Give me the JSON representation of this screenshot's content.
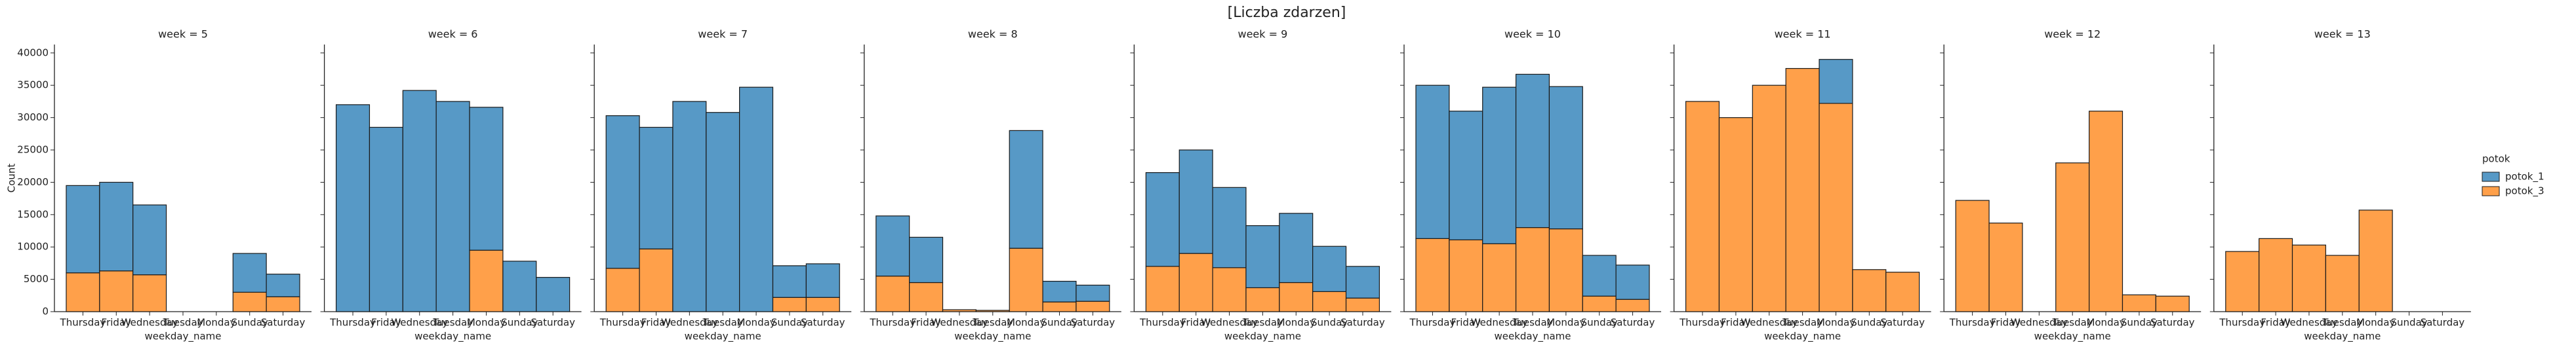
{
  "chart_data": {
    "type": "bar",
    "stacked": true,
    "title": "[Liczba zdarzen]",
    "ylabel": "Count",
    "ylim": [
      0,
      41300
    ],
    "yticks": [
      0,
      5000,
      10000,
      15000,
      20000,
      25000,
      30000,
      35000,
      40000
    ],
    "legend_title": "potok",
    "panels": [
      {
        "title": "week = 5",
        "xlabel": "weekday_name",
        "categories": [
          "Thursday",
          "Friday",
          "Wednesday",
          "Tuesday",
          "Monday",
          "Sunday",
          "Saturday"
        ],
        "series": [
          {
            "name": "potok_1",
            "color": "#5799c6",
            "values": [
              13500,
              13700,
              10800,
              0,
              0,
              6000,
              3500
            ]
          },
          {
            "name": "potok_3",
            "color": "#ffa04a",
            "values": [
              6000,
              6300,
              5700,
              0,
              0,
              3000,
              2300
            ]
          }
        ]
      },
      {
        "title": "week = 6",
        "xlabel": "weekday_name",
        "categories": [
          "Thursday",
          "Friday",
          "Wednesday",
          "Tuesday",
          "Monday",
          "Sunday",
          "Saturday"
        ],
        "series": [
          {
            "name": "potok_1",
            "color": "#5799c6",
            "values": [
              32000,
              28500,
              34200,
              32500,
              22100,
              7800,
              5300
            ]
          },
          {
            "name": "potok_3",
            "color": "#ffa04a",
            "values": [
              0,
              0,
              0,
              0,
              9500,
              0,
              0
            ]
          }
        ]
      },
      {
        "title": "week = 7",
        "xlabel": "weekday_name",
        "categories": [
          "Thursday",
          "Friday",
          "Wednesday",
          "Tuesday",
          "Monday",
          "Sunday",
          "Saturday"
        ],
        "series": [
          {
            "name": "potok_1",
            "color": "#5799c6",
            "values": [
              23600,
              18800,
              32500,
              30800,
              34700,
              4900,
              5200
            ]
          },
          {
            "name": "potok_3",
            "color": "#ffa04a",
            "values": [
              6700,
              9700,
              0,
              0,
              0,
              2200,
              2200
            ]
          }
        ]
      },
      {
        "title": "week = 8",
        "xlabel": "weekday_name",
        "categories": [
          "Thursday",
          "Friday",
          "Wednesday",
          "Tuesday",
          "Monday",
          "Sunday",
          "Saturday"
        ],
        "series": [
          {
            "name": "potok_1",
            "color": "#5799c6",
            "values": [
              9300,
              7000,
              0,
              0,
              18200,
              3200,
              2500
            ]
          },
          {
            "name": "potok_3",
            "color": "#ffa04a",
            "values": [
              5500,
              4500,
              300,
              200,
              9800,
              1500,
              1600
            ]
          }
        ]
      },
      {
        "title": "week = 9",
        "xlabel": "weekday_name",
        "categories": [
          "Thursday",
          "Friday",
          "Wednesday",
          "Tuesday",
          "Monday",
          "Sunday",
          "Saturday"
        ],
        "series": [
          {
            "name": "potok_1",
            "color": "#5799c6",
            "values": [
              14500,
              16000,
              12400,
              9600,
              10700,
              7000,
              4900
            ]
          },
          {
            "name": "potok_3",
            "color": "#ffa04a",
            "values": [
              7000,
              9000,
              6800,
              3700,
              4500,
              3100,
              2100
            ]
          }
        ]
      },
      {
        "title": "week = 10",
        "xlabel": "weekday_name",
        "categories": [
          "Thursday",
          "Friday",
          "Wednesday",
          "Tuesday",
          "Monday",
          "Sunday",
          "Saturday"
        ],
        "series": [
          {
            "name": "potok_1",
            "color": "#5799c6",
            "values": [
              23700,
              19900,
              24200,
              23700,
              22000,
              6300,
              5300
            ]
          },
          {
            "name": "potok_3",
            "color": "#ffa04a",
            "values": [
              11300,
              11100,
              10500,
              13000,
              12800,
              2400,
              1900
            ]
          }
        ]
      },
      {
        "title": "week = 11",
        "xlabel": "weekday_name",
        "categories": [
          "Thursday",
          "Friday",
          "Wednesday",
          "Tuesday",
          "Monday",
          "Sunday",
          "Saturday"
        ],
        "series": [
          {
            "name": "potok_1",
            "color": "#5799c6",
            "values": [
              0,
              0,
              0,
              0,
              6800,
              0,
              0
            ]
          },
          {
            "name": "potok_3",
            "color": "#ffa04a",
            "values": [
              32500,
              30000,
              35000,
              37600,
              32200,
              6500,
              6100
            ]
          }
        ]
      },
      {
        "title": "week = 12",
        "xlabel": "weekday_name",
        "categories": [
          "Thursday",
          "Friday",
          "Wednesday",
          "Tuesday",
          "Monday",
          "Sunday",
          "Saturday"
        ],
        "series": [
          {
            "name": "potok_1",
            "color": "#5799c6",
            "values": [
              0,
              0,
              0,
              0,
              0,
              0,
              0
            ]
          },
          {
            "name": "potok_3",
            "color": "#ffa04a",
            "values": [
              17200,
              13700,
              0,
              23000,
              31000,
              2600,
              2400
            ]
          }
        ]
      },
      {
        "title": "week = 13",
        "xlabel": "weekday_name",
        "categories": [
          "Thursday",
          "Friday",
          "Wednesday",
          "Tuesday",
          "Monday",
          "Sunday",
          "Saturday"
        ],
        "series": [
          {
            "name": "potok_1",
            "color": "#5799c6",
            "values": [
              0,
              0,
              0,
              0,
              0,
              0,
              0
            ]
          },
          {
            "name": "potok_3",
            "color": "#ffa04a",
            "values": [
              9300,
              11300,
              10300,
              8700,
              15700,
              0,
              0
            ]
          }
        ]
      }
    ]
  }
}
